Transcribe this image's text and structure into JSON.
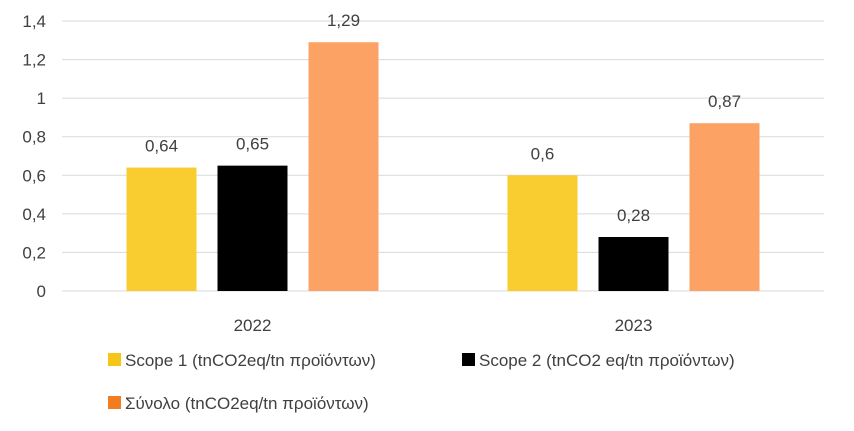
{
  "chart_data": {
    "type": "bar",
    "categories": [
      "2022",
      "2023"
    ],
    "series": [
      {
        "name": "Scope 1 (tnCO2eq/tn προϊόντων)",
        "values": [
          0.64,
          0.6
        ],
        "labels": [
          "0,64",
          "0,6"
        ],
        "color": "#f9cd30",
        "legend_color": "#f5c518"
      },
      {
        "name": "Scope 2 (tnCO2 eq/tn προϊόντων)",
        "values": [
          0.65,
          0.28
        ],
        "labels": [
          "0,65",
          "0,28"
        ],
        "color": "#000000",
        "legend_color": "#000000"
      },
      {
        "name": "Σύνολο (tnCO2eq/tn προϊόντων)",
        "values": [
          1.29,
          0.87
        ],
        "labels": [
          "1,29",
          "0,87"
        ],
        "color": "#fba264",
        "legend_color": "#f47c20"
      }
    ],
    "yticks": [
      "0",
      "0,2",
      "0,4",
      "0,6",
      "0,8",
      "1",
      "1,2",
      "1,4"
    ],
    "ylim": [
      0,
      1.4
    ],
    "grid": true,
    "legend_position": "bottom",
    "title": "",
    "xlabel": "",
    "ylabel": ""
  }
}
